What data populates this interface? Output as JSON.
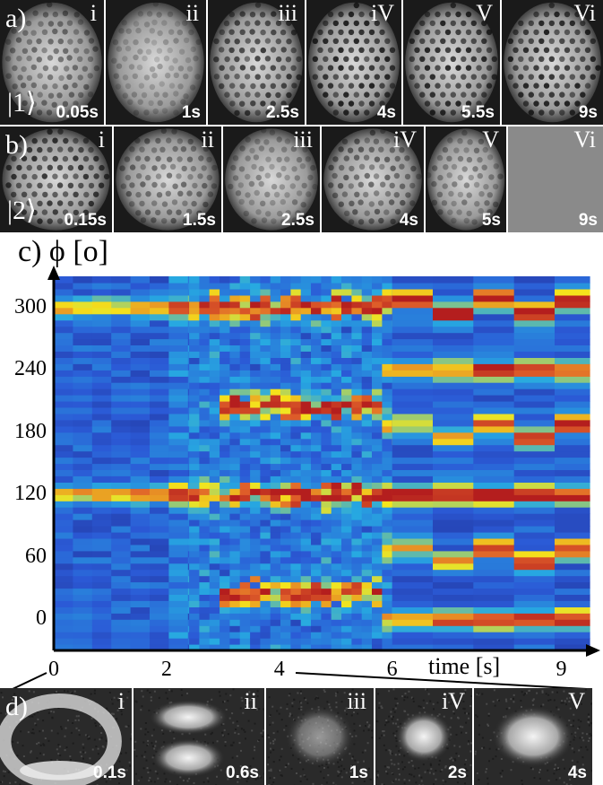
{
  "panel_a": {
    "letter": "a)",
    "state": "|1⟩",
    "frames": [
      {
        "roman": "i",
        "time": "0.05s",
        "order": 0.55
      },
      {
        "roman": "ii",
        "time": "1s",
        "order": 0.3
      },
      {
        "roman": "iii",
        "time": "2.5s",
        "order": 0.85
      },
      {
        "roman": "iV",
        "time": "4s",
        "order": 1.0
      },
      {
        "roman": "V",
        "time": "5.5s",
        "order": 1.0
      },
      {
        "roman": "Vi",
        "time": "9s",
        "order": 1.0
      }
    ]
  },
  "panel_b": {
    "letter": "b)",
    "state": "|2⟩",
    "frames": [
      {
        "roman": "i",
        "time": "0.15s",
        "order": 0.9
      },
      {
        "roman": "ii",
        "time": "1.5s",
        "order": 0.55
      },
      {
        "roman": "iii",
        "time": "2.5s",
        "order": 0.4
      },
      {
        "roman": "iV",
        "time": "4s",
        "order": 0.6
      },
      {
        "roman": "V",
        "time": "5s",
        "order": 0.45
      },
      {
        "roman": "Vi",
        "time": "9s",
        "order": 0.0
      }
    ]
  },
  "panel_c": {
    "letter": "c)",
    "ylabel": "ϕ [o]",
    "xlabel": "time [s]"
  },
  "panel_d": {
    "letter": "d)",
    "frames": [
      {
        "roman": "i",
        "time": "0.1s"
      },
      {
        "roman": "ii",
        "time": "0.6s"
      },
      {
        "roman": "iii",
        "time": "1s"
      },
      {
        "roman": "iV",
        "time": "2s"
      },
      {
        "roman": "V",
        "time": "4s"
      }
    ]
  },
  "chart_data": {
    "type": "heatmap",
    "xlabel": "time [s]",
    "ylabel": "ϕ [o]",
    "xlim": [
      0,
      9.5
    ],
    "ylim": [
      -30,
      330
    ],
    "x_ticks": [
      0,
      2,
      4,
      6,
      9
    ],
    "y_ticks": [
      0,
      60,
      120,
      180,
      240,
      300
    ],
    "colormap": [
      "#1f2a8c",
      "#2b5ad6",
      "#27a9e1",
      "#f5e61c",
      "#e0602a",
      "#b41e1e"
    ],
    "features": [
      {
        "phi": 300,
        "t_start": 0,
        "t_end": 9.5,
        "intensity_early": 0.45,
        "intensity_late": 0.95
      },
      {
        "phi": 120,
        "t_start": 0,
        "t_end": 9.5,
        "intensity_early": 0.5,
        "intensity_late": 0.95
      },
      {
        "phi": 240,
        "t_start": 5.8,
        "t_end": 9.5,
        "intensity_early": 0.4,
        "intensity_late": 0.85
      },
      {
        "phi": 180,
        "t_start": 5.8,
        "t_end": 9.5,
        "intensity_early": 0.4,
        "intensity_late": 0.85
      },
      {
        "phi": 60,
        "t_start": 5.8,
        "t_end": 9.5,
        "intensity_early": 0.4,
        "intensity_late": 0.85
      },
      {
        "phi": 0,
        "t_start": 5.8,
        "t_end": 9.5,
        "intensity_early": 0.4,
        "intensity_late": 0.85
      },
      {
        "phi": 205,
        "t_start": 2.9,
        "t_end": 5.8,
        "intensity_early": 0.75,
        "intensity_late": 0.75
      },
      {
        "phi": 25,
        "t_start": 2.9,
        "t_end": 5.8,
        "intensity_early": 0.75,
        "intensity_late": 0.75
      }
    ]
  }
}
